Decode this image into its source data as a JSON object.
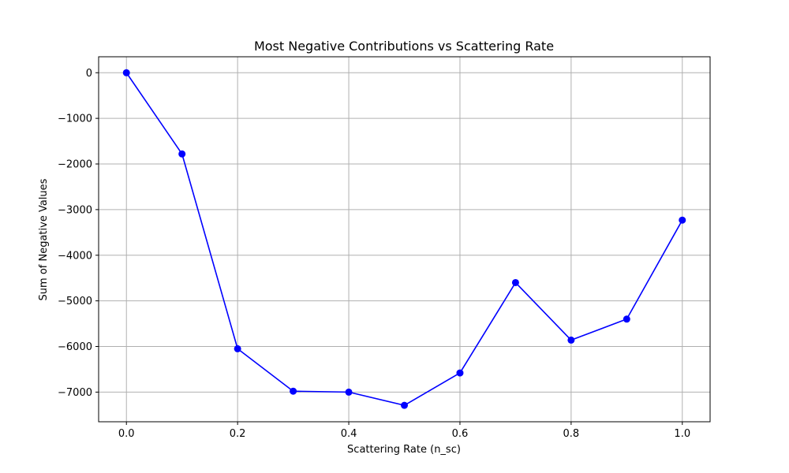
{
  "chart_data": {
    "type": "line",
    "title": "Most Negative Contributions vs Scattering Rate",
    "xlabel": "Scattering Rate (n_sc)",
    "ylabel": "Sum of Negative Values",
    "x": [
      0.0,
      0.1,
      0.2,
      0.3,
      0.4,
      0.5,
      0.6,
      0.7,
      0.8,
      0.9,
      1.0
    ],
    "series": [
      {
        "values": [
          0,
          -1780,
          -6050,
          -6980,
          -7000,
          -7290,
          -6580,
          -4600,
          -5860,
          -5400,
          -3230
        ],
        "color": "#0000ff",
        "marker": "circle"
      }
    ],
    "xlim": [
      -0.05,
      1.05
    ],
    "ylim": [
      -7650,
      350
    ],
    "xticks": [
      "0.0",
      "0.2",
      "0.4",
      "0.6",
      "0.8",
      "1.0"
    ],
    "yticks": [
      "0",
      "−1000",
      "−2000",
      "−3000",
      "−4000",
      "−5000",
      "−6000",
      "−7000"
    ],
    "grid": true
  }
}
